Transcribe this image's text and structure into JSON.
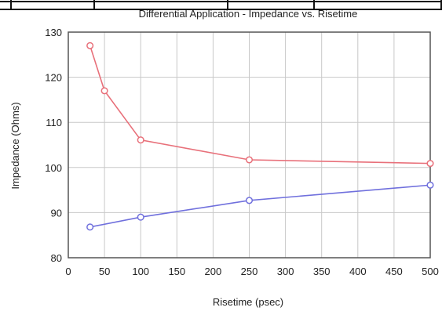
{
  "chart_data": {
    "type": "line",
    "title": "Differential Application - Impedance vs. Risetime",
    "xlabel": "Risetime (psec)",
    "ylabel": "Impedance (Ohms)",
    "xlim": [
      0,
      500
    ],
    "ylim": [
      80,
      130
    ],
    "xticks": [
      0,
      50,
      100,
      150,
      200,
      250,
      300,
      350,
      400,
      450,
      500
    ],
    "yticks": [
      80,
      90,
      100,
      110,
      120,
      130
    ],
    "grid": true,
    "series": [
      {
        "color": "#e8707a",
        "marker": "circle",
        "x": [
          30,
          50,
          100,
          250,
          500
        ],
        "y": [
          127,
          117,
          106.1,
          101.7,
          100.9
        ]
      },
      {
        "color": "#7070dd",
        "marker": "circle",
        "x": [
          30,
          100,
          250,
          500
        ],
        "y": [
          86.8,
          89,
          92.7,
          96.1
        ]
      }
    ]
  }
}
